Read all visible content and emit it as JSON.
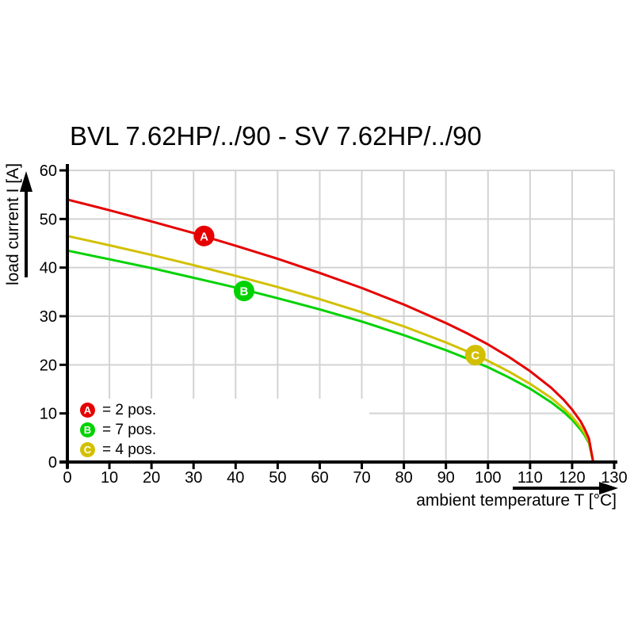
{
  "title": "BVL 7.62HP/../90 - SV 7.62HP/../90",
  "chart_data": {
    "type": "line",
    "title": "BVL 7.62HP/../90 - SV 7.62HP/../90",
    "grid": true,
    "grid_color": "#d3d3d3",
    "legend_position": "inside-bottom-left",
    "x_axis": {
      "label": "ambient temperature T [°C]",
      "min": 0,
      "max": 130,
      "ticks": [
        0,
        10,
        20,
        30,
        40,
        50,
        60,
        70,
        80,
        90,
        100,
        110,
        120,
        130
      ]
    },
    "y_axis": {
      "label": "load current I [A]",
      "min": 0,
      "max": 60,
      "ticks": [
        0,
        10,
        20,
        30,
        40,
        50,
        60
      ]
    },
    "series": [
      {
        "name": "A",
        "legend_label": "= 2 pos.",
        "positions": "2 pos.",
        "color": "#e60000",
        "start_current_a": 54,
        "zero_current_temp_c": 125,
        "marker": {
          "t": 32.5,
          "i": 46.5
        },
        "points": [
          [
            0,
            54
          ],
          [
            10,
            51.8
          ],
          [
            20,
            49.5
          ],
          [
            30,
            47.1
          ],
          [
            40,
            44.5
          ],
          [
            50,
            41.8
          ],
          [
            60,
            38.9
          ],
          [
            70,
            35.8
          ],
          [
            80,
            32.4
          ],
          [
            90,
            28.6
          ],
          [
            95,
            26.5
          ],
          [
            100,
            24.2
          ],
          [
            105,
            21.6
          ],
          [
            110,
            18.7
          ],
          [
            115,
            15.3
          ],
          [
            118,
            12.8
          ],
          [
            120,
            10.8
          ],
          [
            122,
            8.4
          ],
          [
            123,
            6.8
          ],
          [
            124,
            4.8
          ],
          [
            125,
            0
          ]
        ]
      },
      {
        "name": "B",
        "legend_label": "= 7 pos.",
        "positions": "7 pos.",
        "color": "#00d200",
        "start_current_a": 43.5,
        "zero_current_temp_c": 125,
        "marker": {
          "t": 42,
          "i": 35.2
        },
        "points": [
          [
            0,
            43.5
          ],
          [
            10,
            41.7
          ],
          [
            20,
            39.9
          ],
          [
            30,
            37.9
          ],
          [
            40,
            35.9
          ],
          [
            50,
            33.7
          ],
          [
            60,
            31.4
          ],
          [
            70,
            28.9
          ],
          [
            80,
            26.1
          ],
          [
            90,
            23.0
          ],
          [
            95,
            21.3
          ],
          [
            100,
            19.5
          ],
          [
            105,
            17.4
          ],
          [
            110,
            15.1
          ],
          [
            115,
            12.3
          ],
          [
            118,
            10.3
          ],
          [
            120,
            8.7
          ],
          [
            122,
            6.7
          ],
          [
            123,
            5.5
          ],
          [
            124,
            3.9
          ],
          [
            125,
            0
          ]
        ]
      },
      {
        "name": "C",
        "legend_label": "= 4 pos.",
        "positions": "4 pos.",
        "color": "#d2c000",
        "start_current_a": 46.5,
        "zero_current_temp_c": 125,
        "marker": {
          "t": 97,
          "i": 22
        },
        "points": [
          [
            0,
            46.5
          ],
          [
            10,
            44.6
          ],
          [
            20,
            42.6
          ],
          [
            30,
            40.5
          ],
          [
            40,
            38.3
          ],
          [
            50,
            36.0
          ],
          [
            60,
            33.5
          ],
          [
            70,
            30.8
          ],
          [
            80,
            27.9
          ],
          [
            90,
            24.6
          ],
          [
            95,
            22.8
          ],
          [
            100,
            20.8
          ],
          [
            105,
            18.6
          ],
          [
            110,
            16.1
          ],
          [
            115,
            13.2
          ],
          [
            118,
            11.0
          ],
          [
            120,
            9.3
          ],
          [
            122,
            7.2
          ],
          [
            123,
            5.9
          ],
          [
            124,
            4.2
          ],
          [
            125,
            0
          ]
        ]
      }
    ]
  }
}
